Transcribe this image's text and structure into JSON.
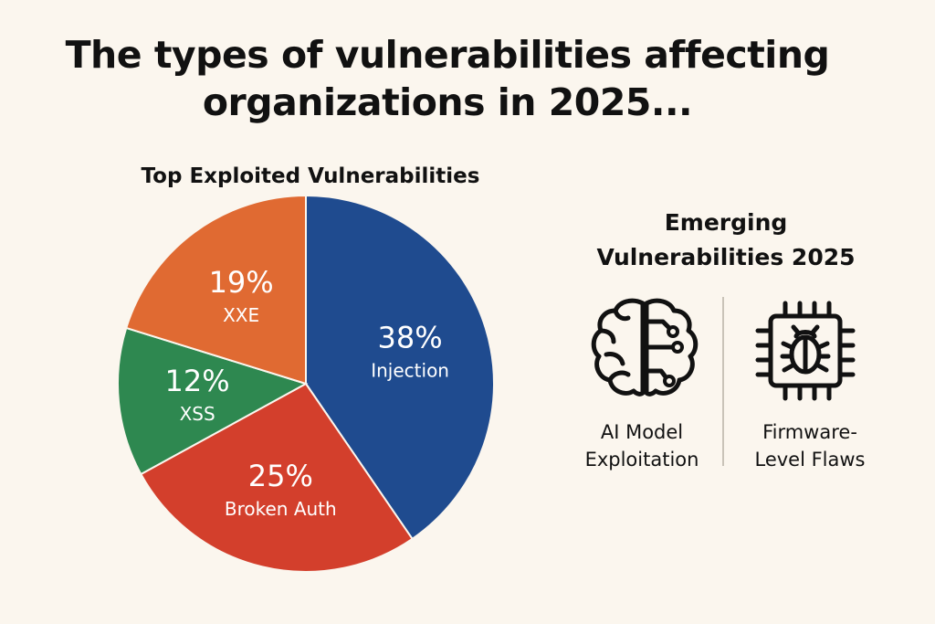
{
  "title_lines": [
    "The types of vulnerabilities affecting",
    "organizations in 2025..."
  ],
  "chart_data": {
    "type": "pie",
    "title": "Top Exploited Vulnerabilities",
    "slices": [
      {
        "label": "Injection",
        "value": 38,
        "display": "38%",
        "color": "#1f4b8f"
      },
      {
        "label": "Broken Auth",
        "value": 25,
        "display": "25%",
        "color": "#d33f2c"
      },
      {
        "label": "XSS",
        "value": 12,
        "display": "12%",
        "color": "#2e8850"
      },
      {
        "label": "XXE",
        "value": 19,
        "display": "19%",
        "color": "#e06a32"
      }
    ]
  },
  "emerging": {
    "title_lines": [
      "Emerging",
      "Vulnerabilities 2025"
    ],
    "items": [
      {
        "icon": "brain-circuit-icon",
        "label_lines": [
          "AI Model",
          "Exploitation"
        ]
      },
      {
        "icon": "chip-bug-icon",
        "label_lines": [
          "Firmware-",
          "Level Flaws"
        ]
      }
    ]
  }
}
